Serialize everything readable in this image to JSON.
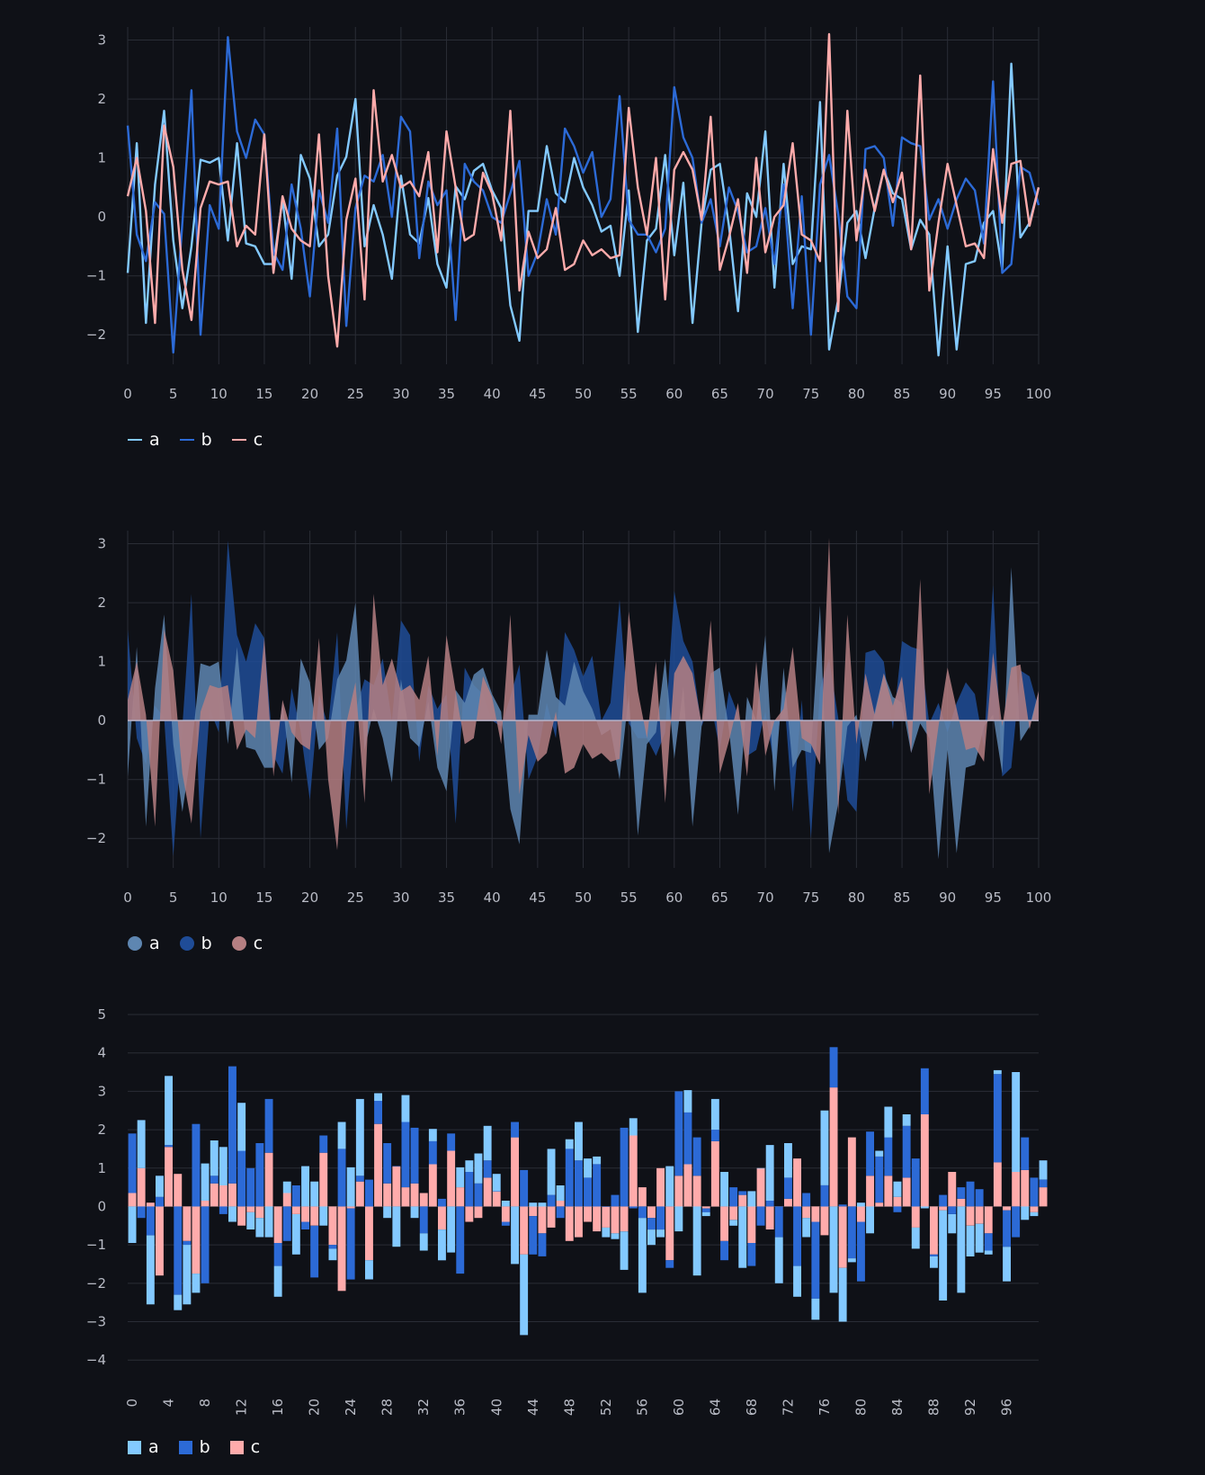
{
  "colors": {
    "a": "#83c9ff",
    "b": "#2c6ad6",
    "c": "#ffabab",
    "grid": "#2a2d36",
    "background": "#0f1117"
  },
  "chart_data": [
    {
      "type": "line",
      "x_ticks": [
        "0",
        "5",
        "10",
        "15",
        "20",
        "25",
        "30",
        "35",
        "40",
        "45",
        "50",
        "55",
        "60",
        "65",
        "70",
        "75",
        "80",
        "85",
        "90",
        "95",
        "100"
      ],
      "y_ticks": [
        "3",
        "2",
        "1",
        "0",
        "−1",
        "−2"
      ],
      "xlim": [
        0,
        100
      ],
      "ylim": [
        -2.5,
        3.1
      ],
      "series": [
        {
          "name": "a",
          "values": [
            -0.95,
            1.25,
            -1.8,
            0.55,
            1.8,
            -0.4,
            -1.55,
            -0.5,
            0.97,
            0.92,
            1.0,
            -0.4,
            1.25,
            -0.45,
            -0.5,
            -0.8,
            -0.8,
            0.3,
            -1.05,
            1.05,
            0.65,
            -0.5,
            -0.3,
            0.7,
            1.02,
            2.0,
            -0.5,
            0.2,
            -0.3,
            -1.05,
            0.7,
            -0.3,
            -0.45,
            0.32,
            -0.8,
            -1.2,
            0.52,
            0.3,
            0.78,
            0.9,
            0.45,
            0.15,
            -1.5,
            -2.1,
            0.1,
            0.1,
            1.2,
            0.4,
            0.25,
            1.0,
            0.5,
            0.2,
            -0.25,
            -0.15,
            -1.0,
            0.45,
            -1.95,
            -0.4,
            -0.2,
            1.05,
            -0.65,
            0.58,
            -1.8,
            -0.1,
            0.8,
            0.9,
            -0.15,
            -1.6,
            0.4,
            0.0,
            1.45,
            -1.2,
            0.9,
            -0.8,
            -0.5,
            -0.55,
            1.95,
            -2.25,
            -1.4,
            -0.1,
            0.1,
            -0.7,
            0.15,
            0.8,
            0.4,
            0.3,
            -0.55,
            -0.05,
            -0.3,
            -2.35,
            -0.5,
            -2.25,
            -0.8,
            -0.75,
            -0.1,
            0.1,
            -0.9,
            2.6,
            -0.35,
            -0.1,
            0.5
          ]
        },
        {
          "name": "b",
          "values": [
            1.55,
            -0.3,
            -0.75,
            0.25,
            0.05,
            -2.3,
            -0.1,
            2.15,
            -2.0,
            0.2,
            -0.2,
            3.05,
            1.45,
            1.0,
            1.65,
            1.4,
            -0.6,
            -0.9,
            0.55,
            -0.2,
            -1.35,
            0.45,
            -0.1,
            1.5,
            -1.85,
            0.15,
            0.7,
            0.6,
            1.05,
            0.0,
            1.7,
            1.45,
            -0.7,
            0.6,
            0.2,
            0.45,
            -1.75,
            0.9,
            0.6,
            0.45,
            0.0,
            -0.1,
            0.4,
            0.95,
            -1.0,
            -0.6,
            0.3,
            -0.3,
            1.5,
            1.2,
            0.75,
            1.1,
            0.0,
            0.3,
            2.05,
            -0.05,
            -0.3,
            -0.3,
            -0.6,
            -0.2,
            2.2,
            1.35,
            1.0,
            -0.1,
            0.3,
            -0.5,
            0.5,
            0.1,
            -0.6,
            -0.5,
            0.15,
            -0.8,
            0.55,
            -1.55,
            0.35,
            -2.0,
            0.55,
            1.05,
            0.05,
            -1.35,
            -1.55,
            1.15,
            1.2,
            1.0,
            -0.15,
            1.35,
            1.25,
            1.2,
            -0.05,
            0.3,
            -0.2,
            0.3,
            0.65,
            0.45,
            -0.45,
            2.3,
            -0.95,
            -0.8,
            0.85,
            0.75,
            0.2
          ]
        },
        {
          "name": "c",
          "values": [
            0.35,
            1.0,
            0.1,
            -1.8,
            1.55,
            0.85,
            -0.9,
            -1.75,
            0.15,
            0.6,
            0.55,
            0.6,
            -0.5,
            -0.15,
            -0.3,
            1.4,
            -0.95,
            0.35,
            -0.2,
            -0.4,
            -0.5,
            1.4,
            -1.0,
            -2.2,
            -0.05,
            0.65,
            -1.4,
            2.15,
            0.6,
            1.05,
            0.5,
            0.6,
            0.35,
            1.1,
            -0.6,
            1.45,
            0.5,
            -0.4,
            -0.3,
            0.75,
            0.4,
            -0.4,
            1.8,
            -1.25,
            -0.25,
            -0.7,
            -0.55,
            0.15,
            -0.9,
            -0.8,
            -0.4,
            -0.65,
            -0.55,
            -0.7,
            -0.65,
            1.85,
            0.5,
            -0.3,
            1.0,
            -1.4,
            0.8,
            1.1,
            0.8,
            -0.05,
            1.7,
            -0.9,
            -0.35,
            0.3,
            -0.95,
            1.0,
            -0.6,
            0.0,
            0.2,
            1.25,
            -0.3,
            -0.4,
            -0.75,
            3.1,
            -1.6,
            1.8,
            -0.4,
            0.8,
            0.1,
            0.8,
            0.25,
            0.75,
            -0.55,
            2.4,
            -1.25,
            -0.1,
            0.9,
            0.2,
            -0.5,
            -0.45,
            -0.7,
            1.15,
            -0.1,
            0.9,
            0.95,
            -0.15,
            0.5
          ]
        }
      ]
    },
    {
      "type": "area",
      "x_ticks": [
        "0",
        "5",
        "10",
        "15",
        "20",
        "25",
        "30",
        "35",
        "40",
        "45",
        "50",
        "55",
        "60",
        "65",
        "70",
        "75",
        "80",
        "85",
        "90",
        "95",
        "100"
      ],
      "y_ticks": [
        "3",
        "2",
        "1",
        "0",
        "−1",
        "−2"
      ],
      "xlim": [
        0,
        100
      ],
      "ylim": [
        -2.5,
        3.1
      ],
      "series_names": [
        "a",
        "b",
        "c"
      ],
      "note_values": "same series values as the line chart"
    },
    {
      "type": "bar",
      "stacked": true,
      "x_ticks": [
        "0",
        "4",
        "8",
        "12",
        "16",
        "20",
        "24",
        "28",
        "32",
        "36",
        "40",
        "44",
        "48",
        "52",
        "56",
        "60",
        "64",
        "68",
        "72",
        "76",
        "80",
        "84",
        "88",
        "92",
        "96"
      ],
      "y_ticks": [
        "5",
        "4",
        "3",
        "2",
        "1",
        "0",
        "−1",
        "−2",
        "−3",
        "−4"
      ],
      "ylim": [
        -4.3,
        5.0
      ],
      "series_names": [
        "a",
        "b",
        "c"
      ],
      "note_values": "same series values as the line chart"
    }
  ],
  "legends": {
    "line": [
      "a",
      "b",
      "c"
    ],
    "area": [
      "a",
      "b",
      "c"
    ],
    "bar": [
      "a",
      "b",
      "c"
    ]
  }
}
